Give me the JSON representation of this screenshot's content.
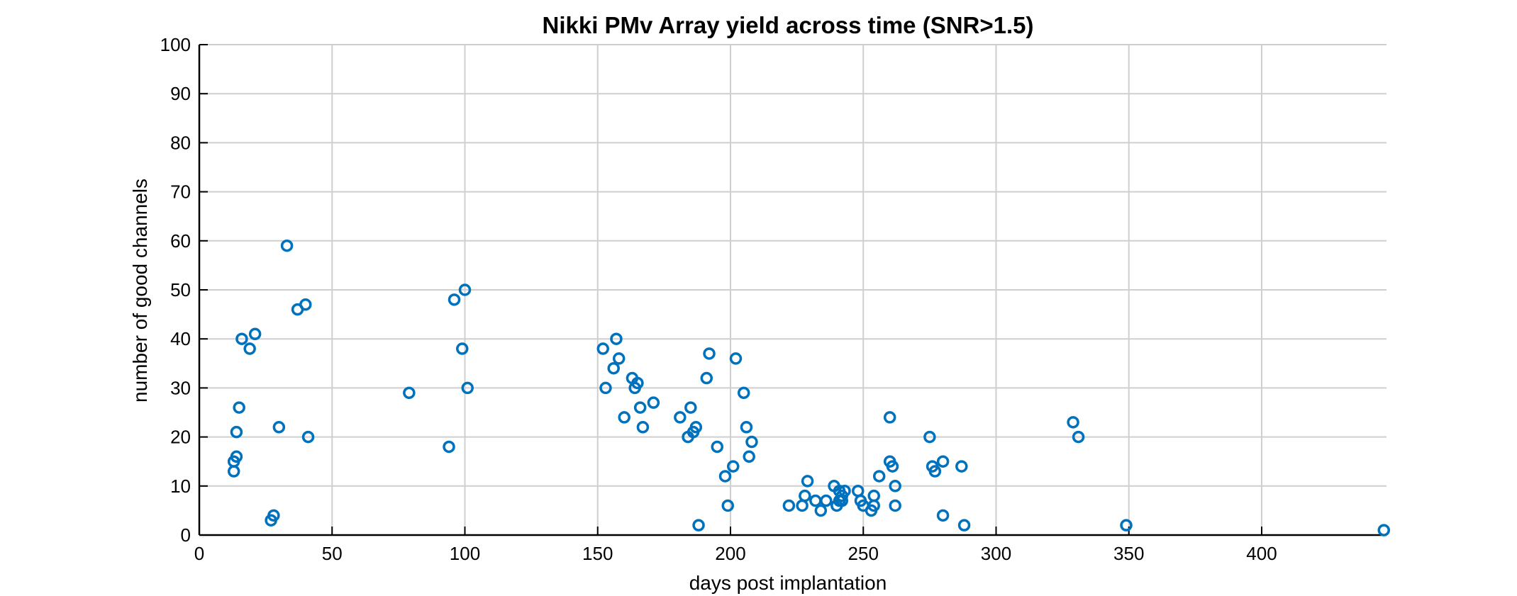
{
  "chart_data": {
    "type": "scatter",
    "title": "Nikki PMv Array yield across time (SNR>1.5)",
    "xlabel": "days post implantation",
    "ylabel": "number of good channels",
    "xlim": [
      0,
      447
    ],
    "ylim": [
      0,
      100
    ],
    "xticks": [
      0,
      50,
      100,
      150,
      200,
      250,
      300,
      350,
      400
    ],
    "yticks": [
      0,
      10,
      20,
      30,
      40,
      50,
      60,
      70,
      80,
      90,
      100
    ],
    "grid": true,
    "legend": "none",
    "marker_color": "#0072BD",
    "series": [
      {
        "points": [
          [
            13,
            13
          ],
          [
            13,
            15
          ],
          [
            14,
            16
          ],
          [
            14,
            21
          ],
          [
            15,
            26
          ],
          [
            16,
            40
          ],
          [
            19,
            38
          ],
          [
            21,
            41
          ],
          [
            27,
            3
          ],
          [
            28,
            4
          ],
          [
            30,
            22
          ],
          [
            33,
            59
          ],
          [
            37,
            46
          ],
          [
            40,
            47
          ],
          [
            41,
            20
          ],
          [
            79,
            29
          ],
          [
            94,
            18
          ],
          [
            96,
            48
          ],
          [
            99,
            38
          ],
          [
            100,
            50
          ],
          [
            101,
            30
          ],
          [
            152,
            38
          ],
          [
            153,
            30
          ],
          [
            156,
            34
          ],
          [
            157,
            40
          ],
          [
            158,
            36
          ],
          [
            160,
            24
          ],
          [
            163,
            32
          ],
          [
            164,
            30
          ],
          [
            165,
            31
          ],
          [
            166,
            26
          ],
          [
            167,
            22
          ],
          [
            171,
            27
          ],
          [
            181,
            24
          ],
          [
            184,
            20
          ],
          [
            185,
            26
          ],
          [
            186,
            21
          ],
          [
            187,
            22
          ],
          [
            188,
            2
          ],
          [
            191,
            32
          ],
          [
            192,
            37
          ],
          [
            195,
            18
          ],
          [
            198,
            12
          ],
          [
            199,
            6
          ],
          [
            201,
            14
          ],
          [
            202,
            36
          ],
          [
            205,
            29
          ],
          [
            206,
            22
          ],
          [
            207,
            16
          ],
          [
            208,
            19
          ],
          [
            222,
            6
          ],
          [
            227,
            6
          ],
          [
            228,
            8
          ],
          [
            229,
            11
          ],
          [
            232,
            7
          ],
          [
            234,
            5
          ],
          [
            236,
            7
          ],
          [
            239,
            10
          ],
          [
            240,
            6
          ],
          [
            241,
            9
          ],
          [
            241,
            7
          ],
          [
            242,
            8
          ],
          [
            242,
            7
          ],
          [
            243,
            9
          ],
          [
            248,
            9
          ],
          [
            249,
            7
          ],
          [
            250,
            6
          ],
          [
            253,
            5
          ],
          [
            254,
            6
          ],
          [
            254,
            8
          ],
          [
            256,
            12
          ],
          [
            260,
            24
          ],
          [
            260,
            15
          ],
          [
            261,
            14
          ],
          [
            262,
            10
          ],
          [
            262,
            6
          ],
          [
            275,
            20
          ],
          [
            276,
            14
          ],
          [
            277,
            13
          ],
          [
            280,
            15
          ],
          [
            280,
            4
          ],
          [
            287,
            14
          ],
          [
            288,
            2
          ],
          [
            329,
            23
          ],
          [
            331,
            20
          ],
          [
            349,
            2
          ],
          [
            446,
            1
          ]
        ]
      }
    ]
  }
}
